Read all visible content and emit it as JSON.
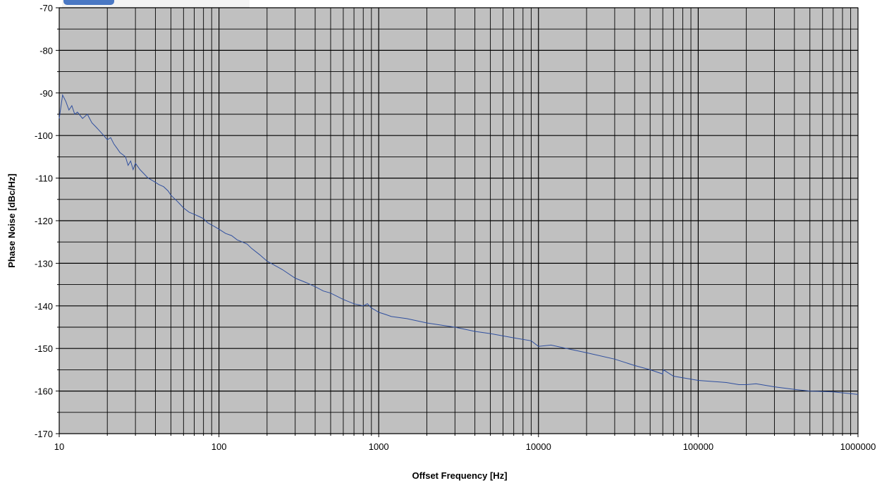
{
  "chart_data": {
    "type": "line",
    "title": "",
    "xlabel": "Offset Frequency [Hz]",
    "ylabel": "Phase Noise [dBc/Hz]",
    "x_scale": "log",
    "xlim": [
      10,
      1000000
    ],
    "ylim": [
      -170,
      -70
    ],
    "x_ticks": [
      "10",
      "100",
      "1000",
      "10000",
      "100000",
      "1000000"
    ],
    "y_ticks": [
      "-70",
      "-80",
      "-90",
      "-100",
      "-110",
      "-120",
      "-130",
      "-140",
      "-150",
      "-160",
      "-170"
    ],
    "grid": true,
    "plot_background": "#c0c0c0",
    "line_color": "#2f4f9f",
    "series": [
      {
        "x": [
          10,
          10.5,
          11,
          11.5,
          12,
          12.5,
          13,
          14,
          15,
          16,
          17,
          18,
          19,
          20,
          21,
          22,
          23,
          24,
          25,
          26,
          27,
          28,
          29,
          30,
          32,
          34,
          36,
          38,
          40,
          42,
          45,
          48,
          50,
          55,
          60,
          65,
          70,
          75,
          80,
          85,
          90,
          95,
          100,
          110,
          120,
          130,
          140,
          150,
          160,
          180,
          200,
          250,
          300,
          350,
          400,
          450,
          500,
          600,
          700,
          800,
          850,
          900,
          950,
          1000,
          1100,
          1200,
          1500,
          2000,
          3000,
          4000,
          5000,
          7000,
          9000,
          10000,
          12000,
          15000,
          20000,
          30000,
          40000,
          50000,
          60000,
          60500,
          70000,
          100000,
          150000,
          180000,
          200000,
          230000,
          300000,
          400000,
          500000,
          700000,
          1000000
        ],
        "y": [
          -96,
          -90.5,
          -92,
          -94,
          -93,
          -95,
          -94.5,
          -96,
          -95,
          -97,
          -98,
          -99,
          -100,
          -101,
          -100.5,
          -102,
          -103,
          -104,
          -104.5,
          -105,
          -107,
          -106,
          -108,
          -106.5,
          -108,
          -109,
          -110,
          -110.5,
          -111,
          -111.5,
          -112,
          -113,
          -114,
          -115.5,
          -117,
          -118,
          -118.5,
          -119,
          -119.5,
          -120.5,
          -121,
          -121.5,
          -122,
          -123,
          -123.5,
          -124.5,
          -125,
          -125.5,
          -126.5,
          -128,
          -129.5,
          -131.5,
          -133.5,
          -134.5,
          -135.5,
          -136.5,
          -137,
          -138.5,
          -139.5,
          -140,
          -139.5,
          -140.5,
          -141,
          -141.5,
          -142,
          -142.5,
          -143,
          -144,
          -145,
          -146,
          -146.5,
          -147.5,
          -148.2,
          -149.5,
          -149.2,
          -150,
          -151,
          -152.5,
          -154,
          -155,
          -156,
          -155,
          -156.5,
          -157.5,
          -158,
          -158.5,
          -158.5,
          -158.3,
          -159,
          -159.6,
          -160,
          -160.2,
          -160.8
        ]
      }
    ]
  }
}
